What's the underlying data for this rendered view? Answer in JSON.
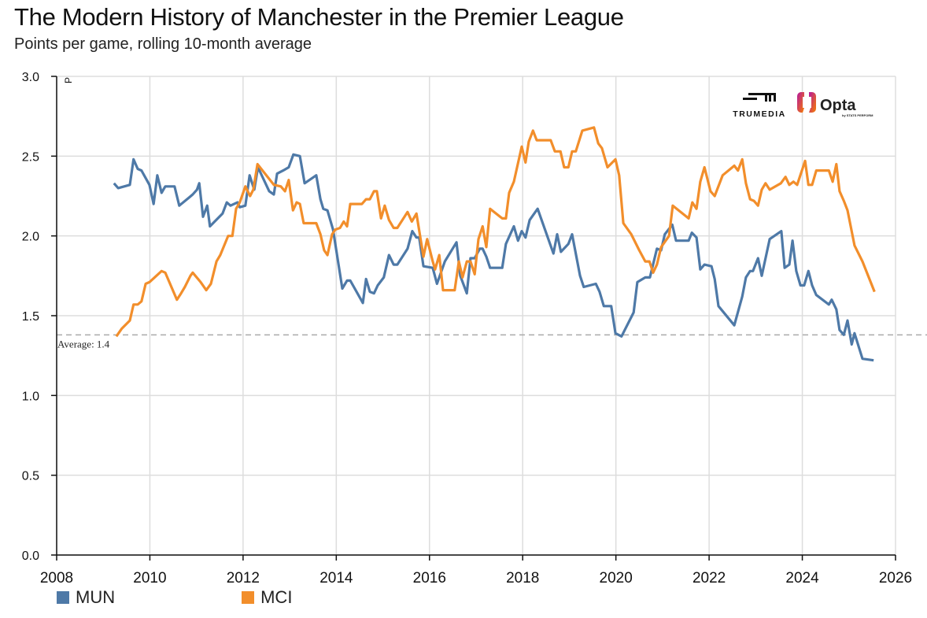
{
  "chart_data": {
    "type": "line",
    "title": "The Modern History of Manchester in the Premier League",
    "subtitle": "Points per game, rolling 10-month average",
    "ylabel": "P",
    "xlabel": "",
    "xlim": [
      2008,
      2026
    ],
    "ylim": [
      0,
      3.0
    ],
    "x_ticks": [
      "2008",
      "2010",
      "2012",
      "2014",
      "2016",
      "2018",
      "2020",
      "2022",
      "2024",
      "2026"
    ],
    "y_ticks": [
      "0.0",
      "0.5",
      "1.0",
      "1.5",
      "2.0",
      "2.5",
      "3.0"
    ],
    "grid": true,
    "legend_placement": "bottom-left",
    "reference_line": {
      "value": 1.38,
      "label": "Average: 1.4",
      "color": "#aaaaaa",
      "style": "dashed"
    },
    "series": [
      {
        "name": "MUN",
        "color": "#4e79a7",
        "points": [
          [
            2009.23,
            2.33
          ],
          [
            2009.32,
            2.3
          ],
          [
            2009.57,
            2.32
          ],
          [
            2009.65,
            2.48
          ],
          [
            2009.74,
            2.42
          ],
          [
            2009.82,
            2.41
          ],
          [
            2009.99,
            2.32
          ],
          [
            2010.08,
            2.2
          ],
          [
            2010.16,
            2.38
          ],
          [
            2010.25,
            2.27
          ],
          [
            2010.33,
            2.31
          ],
          [
            2010.53,
            2.31
          ],
          [
            2010.63,
            2.19
          ],
          [
            2010.84,
            2.24
          ],
          [
            2010.92,
            2.26
          ],
          [
            2011.01,
            2.29
          ],
          [
            2011.06,
            2.33
          ],
          [
            2011.14,
            2.12
          ],
          [
            2011.23,
            2.19
          ],
          [
            2011.29,
            2.06
          ],
          [
            2011.56,
            2.14
          ],
          [
            2011.65,
            2.21
          ],
          [
            2011.73,
            2.19
          ],
          [
            2011.88,
            2.21
          ],
          [
            2011.93,
            2.18
          ],
          [
            2012.05,
            2.19
          ],
          [
            2012.14,
            2.38
          ],
          [
            2012.24,
            2.29
          ],
          [
            2012.32,
            2.43
          ],
          [
            2012.56,
            2.28
          ],
          [
            2012.66,
            2.26
          ],
          [
            2012.73,
            2.39
          ],
          [
            2012.86,
            2.41
          ],
          [
            2012.98,
            2.43
          ],
          [
            2013.08,
            2.51
          ],
          [
            2013.22,
            2.5
          ],
          [
            2013.32,
            2.33
          ],
          [
            2013.57,
            2.38
          ],
          [
            2013.66,
            2.23
          ],
          [
            2013.72,
            2.17
          ],
          [
            2013.81,
            2.16
          ],
          [
            2013.93,
            2.04
          ],
          [
            2014.13,
            1.67
          ],
          [
            2014.23,
            1.72
          ],
          [
            2014.3,
            1.72
          ],
          [
            2014.57,
            1.58
          ],
          [
            2014.64,
            1.73
          ],
          [
            2014.72,
            1.65
          ],
          [
            2014.81,
            1.64
          ],
          [
            2014.89,
            1.69
          ],
          [
            2015.02,
            1.74
          ],
          [
            2015.13,
            1.88
          ],
          [
            2015.23,
            1.82
          ],
          [
            2015.31,
            1.82
          ],
          [
            2015.53,
            1.92
          ],
          [
            2015.63,
            2.03
          ],
          [
            2015.72,
            1.99
          ],
          [
            2015.78,
            1.99
          ],
          [
            2015.87,
            1.81
          ],
          [
            2016.07,
            1.8
          ],
          [
            2016.16,
            1.7
          ],
          [
            2016.33,
            1.84
          ],
          [
            2016.58,
            1.96
          ],
          [
            2016.66,
            1.75
          ],
          [
            2016.8,
            1.64
          ],
          [
            2016.88,
            1.86
          ],
          [
            2016.97,
            1.86
          ],
          [
            2017.08,
            1.92
          ],
          [
            2017.14,
            1.92
          ],
          [
            2017.22,
            1.87
          ],
          [
            2017.3,
            1.8
          ],
          [
            2017.56,
            1.8
          ],
          [
            2017.64,
            1.95
          ],
          [
            2017.81,
            2.06
          ],
          [
            2017.9,
            1.97
          ],
          [
            2017.98,
            2.03
          ],
          [
            2018.06,
            1.99
          ],
          [
            2018.15,
            2.1
          ],
          [
            2018.32,
            2.17
          ],
          [
            2018.66,
            1.89
          ],
          [
            2018.74,
            2.01
          ],
          [
            2018.82,
            1.9
          ],
          [
            2018.98,
            1.95
          ],
          [
            2019.06,
            2.01
          ],
          [
            2019.23,
            1.75
          ],
          [
            2019.31,
            1.68
          ],
          [
            2019.57,
            1.7
          ],
          [
            2019.65,
            1.65
          ],
          [
            2019.74,
            1.56
          ],
          [
            2019.9,
            1.56
          ],
          [
            2019.99,
            1.39
          ],
          [
            2020.12,
            1.37
          ],
          [
            2020.38,
            1.52
          ],
          [
            2020.46,
            1.71
          ],
          [
            2020.63,
            1.74
          ],
          [
            2020.73,
            1.74
          ],
          [
            2020.88,
            1.92
          ],
          [
            2020.97,
            1.91
          ],
          [
            2021.05,
            2.01
          ],
          [
            2021.21,
            2.07
          ],
          [
            2021.29,
            1.97
          ],
          [
            2021.56,
            1.97
          ],
          [
            2021.63,
            2.02
          ],
          [
            2021.73,
            1.99
          ],
          [
            2021.81,
            1.79
          ],
          [
            2021.9,
            1.82
          ],
          [
            2022.05,
            1.81
          ],
          [
            2022.12,
            1.73
          ],
          [
            2022.2,
            1.56
          ],
          [
            2022.54,
            1.44
          ],
          [
            2022.71,
            1.62
          ],
          [
            2022.79,
            1.74
          ],
          [
            2022.88,
            1.78
          ],
          [
            2022.94,
            1.78
          ],
          [
            2023.05,
            1.86
          ],
          [
            2023.13,
            1.75
          ],
          [
            2023.3,
            1.98
          ],
          [
            2023.55,
            2.03
          ],
          [
            2023.62,
            1.8
          ],
          [
            2023.72,
            1.82
          ],
          [
            2023.79,
            1.97
          ],
          [
            2023.87,
            1.78
          ],
          [
            2023.96,
            1.69
          ],
          [
            2024.04,
            1.69
          ],
          [
            2024.13,
            1.78
          ],
          [
            2024.21,
            1.69
          ],
          [
            2024.3,
            1.63
          ],
          [
            2024.57,
            1.57
          ],
          [
            2024.63,
            1.6
          ],
          [
            2024.73,
            1.54
          ],
          [
            2024.8,
            1.41
          ],
          [
            2024.89,
            1.38
          ],
          [
            2024.97,
            1.47
          ],
          [
            2025.06,
            1.32
          ],
          [
            2025.12,
            1.39
          ],
          [
            2025.29,
            1.23
          ],
          [
            2025.53,
            1.22
          ]
        ]
      },
      {
        "name": "MCI",
        "color": "#f28e2b",
        "points": [
          [
            2009.28,
            1.37
          ],
          [
            2009.4,
            1.42
          ],
          [
            2009.57,
            1.47
          ],
          [
            2009.65,
            1.57
          ],
          [
            2009.74,
            1.57
          ],
          [
            2009.82,
            1.59
          ],
          [
            2009.91,
            1.7
          ],
          [
            2009.99,
            1.71
          ],
          [
            2010.25,
            1.78
          ],
          [
            2010.33,
            1.77
          ],
          [
            2010.58,
            1.6
          ],
          [
            2010.67,
            1.64
          ],
          [
            2010.75,
            1.68
          ],
          [
            2010.87,
            1.75
          ],
          [
            2010.92,
            1.77
          ],
          [
            2011.09,
            1.71
          ],
          [
            2011.21,
            1.66
          ],
          [
            2011.31,
            1.7
          ],
          [
            2011.43,
            1.84
          ],
          [
            2011.51,
            1.88
          ],
          [
            2011.68,
            2.0
          ],
          [
            2011.77,
            2.0
          ],
          [
            2011.85,
            2.17
          ],
          [
            2011.93,
            2.21
          ],
          [
            2012.05,
            2.31
          ],
          [
            2012.15,
            2.25
          ],
          [
            2012.22,
            2.29
          ],
          [
            2012.31,
            2.45
          ],
          [
            2012.66,
            2.32
          ],
          [
            2012.81,
            2.31
          ],
          [
            2012.9,
            2.28
          ],
          [
            2012.98,
            2.35
          ],
          [
            2013.07,
            2.16
          ],
          [
            2013.15,
            2.21
          ],
          [
            2013.22,
            2.2
          ],
          [
            2013.3,
            2.08
          ],
          [
            2013.57,
            2.08
          ],
          [
            2013.66,
            2.01
          ],
          [
            2013.74,
            1.91
          ],
          [
            2013.81,
            1.88
          ],
          [
            2013.91,
            2.01
          ],
          [
            2013.98,
            2.04
          ],
          [
            2014.08,
            2.05
          ],
          [
            2014.16,
            2.09
          ],
          [
            2014.23,
            2.06
          ],
          [
            2014.3,
            2.2
          ],
          [
            2014.55,
            2.2
          ],
          [
            2014.64,
            2.23
          ],
          [
            2014.72,
            2.23
          ],
          [
            2014.81,
            2.28
          ],
          [
            2014.87,
            2.28
          ],
          [
            2014.96,
            2.11
          ],
          [
            2015.04,
            2.19
          ],
          [
            2015.13,
            2.1
          ],
          [
            2015.23,
            2.05
          ],
          [
            2015.31,
            2.05
          ],
          [
            2015.53,
            2.15
          ],
          [
            2015.62,
            2.09
          ],
          [
            2015.72,
            2.14
          ],
          [
            2015.87,
            1.87
          ],
          [
            2015.95,
            1.98
          ],
          [
            2016.07,
            1.84
          ],
          [
            2016.12,
            1.79
          ],
          [
            2016.21,
            1.88
          ],
          [
            2016.29,
            1.66
          ],
          [
            2016.54,
            1.66
          ],
          [
            2016.63,
            1.84
          ],
          [
            2016.71,
            1.74
          ],
          [
            2016.8,
            1.84
          ],
          [
            2016.88,
            1.84
          ],
          [
            2016.97,
            1.76
          ],
          [
            2017.05,
            1.98
          ],
          [
            2017.14,
            2.06
          ],
          [
            2017.22,
            1.93
          ],
          [
            2017.3,
            2.17
          ],
          [
            2017.56,
            2.11
          ],
          [
            2017.64,
            2.11
          ],
          [
            2017.71,
            2.27
          ],
          [
            2017.81,
            2.34
          ],
          [
            2017.98,
            2.56
          ],
          [
            2018.06,
            2.46
          ],
          [
            2018.13,
            2.59
          ],
          [
            2018.22,
            2.66
          ],
          [
            2018.3,
            2.6
          ],
          [
            2018.6,
            2.6
          ],
          [
            2018.69,
            2.53
          ],
          [
            2018.81,
            2.53
          ],
          [
            2018.89,
            2.43
          ],
          [
            2018.98,
            2.43
          ],
          [
            2019.06,
            2.53
          ],
          [
            2019.14,
            2.53
          ],
          [
            2019.28,
            2.66
          ],
          [
            2019.53,
            2.68
          ],
          [
            2019.62,
            2.58
          ],
          [
            2019.7,
            2.55
          ],
          [
            2019.82,
            2.43
          ],
          [
            2019.99,
            2.48
          ],
          [
            2020.07,
            2.38
          ],
          [
            2020.16,
            2.08
          ],
          [
            2020.33,
            2.01
          ],
          [
            2020.5,
            1.91
          ],
          [
            2020.63,
            1.84
          ],
          [
            2020.72,
            1.84
          ],
          [
            2020.8,
            1.77
          ],
          [
            2020.88,
            1.82
          ],
          [
            2020.97,
            1.93
          ],
          [
            2021.14,
            2.0
          ],
          [
            2021.22,
            2.19
          ],
          [
            2021.56,
            2.11
          ],
          [
            2021.64,
            2.21
          ],
          [
            2021.73,
            2.17
          ],
          [
            2021.81,
            2.34
          ],
          [
            2021.9,
            2.43
          ],
          [
            2022.03,
            2.28
          ],
          [
            2022.12,
            2.25
          ],
          [
            2022.29,
            2.38
          ],
          [
            2022.54,
            2.44
          ],
          [
            2022.62,
            2.41
          ],
          [
            2022.71,
            2.48
          ],
          [
            2022.79,
            2.33
          ],
          [
            2022.88,
            2.23
          ],
          [
            2022.96,
            2.22
          ],
          [
            2023.05,
            2.19
          ],
          [
            2023.13,
            2.29
          ],
          [
            2023.21,
            2.33
          ],
          [
            2023.3,
            2.29
          ],
          [
            2023.54,
            2.33
          ],
          [
            2023.64,
            2.37
          ],
          [
            2023.72,
            2.32
          ],
          [
            2023.81,
            2.34
          ],
          [
            2023.89,
            2.32
          ],
          [
            2024.06,
            2.47
          ],
          [
            2024.13,
            2.32
          ],
          [
            2024.21,
            2.32
          ],
          [
            2024.3,
            2.41
          ],
          [
            2024.57,
            2.41
          ],
          [
            2024.65,
            2.34
          ],
          [
            2024.73,
            2.45
          ],
          [
            2024.8,
            2.28
          ],
          [
            2024.89,
            2.22
          ],
          [
            2024.97,
            2.16
          ],
          [
            2025.12,
            1.94
          ],
          [
            2025.29,
            1.84
          ],
          [
            2025.55,
            1.65
          ]
        ]
      }
    ]
  },
  "logos": {
    "trumedia": "TRUMEDIA",
    "opta": "Opta",
    "opta_sub": "by STATS PERFORM"
  }
}
